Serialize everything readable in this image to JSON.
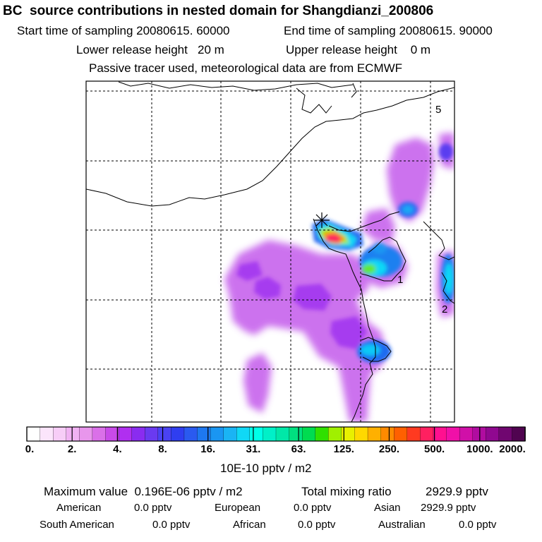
{
  "header": {
    "title": "BC  source contributions in nested domain for Shangdianzi_200806",
    "start_label": "Start time of sampling 20080615. 60000",
    "end_label": "End time of sampling 20080615. 90000",
    "lower_label": "Lower release height   20 m",
    "upper_label": "Upper release height    0 m",
    "tracer_note": "Passive tracer used, meteorological data are from ECMWF"
  },
  "map": {
    "region_labels": [
      "5",
      "1",
      "2"
    ],
    "receptor_marker": "star-cross-icon"
  },
  "colorbar": {
    "tick_labels": [
      "0.",
      "2.",
      "4.",
      "8.",
      "16.",
      "31.",
      "63.",
      "125.",
      "250.",
      "500.",
      "1000.",
      "2000."
    ],
    "unit_label": "10E-10 pptv / m2",
    "colors": [
      "#ffffff",
      "#fbe5fb",
      "#f7cdf7",
      "#f1b2f3",
      "#e896ec",
      "#da70e8",
      "#c84ae8",
      "#b02ff0",
      "#8a2cf0",
      "#6a3af0",
      "#4a42f2",
      "#2f3ef0",
      "#2a5af0",
      "#1e78f0",
      "#1a96f2",
      "#1ab4f4",
      "#10d8f6",
      "#00ffe8",
      "#00f0c8",
      "#00e8a8",
      "#00e080",
      "#00dc50",
      "#30e000",
      "#a0f000",
      "#e8f000",
      "#ffd800",
      "#ffb000",
      "#ff8a00",
      "#ff6000",
      "#ff3a20",
      "#ff2060",
      "#ff1090",
      "#f010a8",
      "#d010a8",
      "#b00ca0",
      "#900890",
      "#700670",
      "#500450"
    ]
  },
  "footer": {
    "max_label": "Maximum value  0.196E-06 pptv / m2",
    "total_label": "Total mixing ratio",
    "total_value": "2929.9 pptv",
    "american_label": "American",
    "american_value": "0.0 pptv",
    "european_label": "European",
    "european_value": "0.0 pptv",
    "asian_label": "Asian",
    "asian_value": "2929.9 pptv",
    "south_american_label": "South American",
    "south_american_value": "0.0 pptv",
    "african_label": "African",
    "african_value": "0.0 pptv",
    "australian_label": "Australian",
    "australian_value": "0.0 pptv"
  }
}
